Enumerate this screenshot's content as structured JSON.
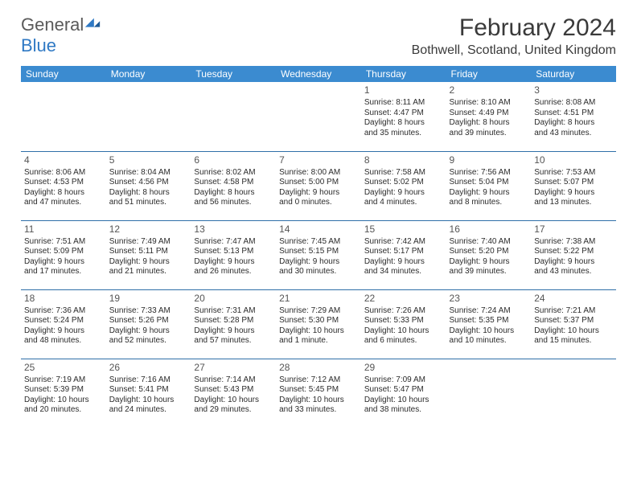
{
  "brand": {
    "name_a": "General",
    "name_b": "Blue",
    "accent": "#3b8bd0"
  },
  "title": "February 2024",
  "location": "Bothwell, Scotland, United Kingdom",
  "colors": {
    "header_bg": "#3b8bd0",
    "header_text": "#ffffff",
    "rule": "#2f6fa8",
    "body_text": "#2b2b2b",
    "page_bg": "#ffffff"
  },
  "day_headers": [
    "Sunday",
    "Monday",
    "Tuesday",
    "Wednesday",
    "Thursday",
    "Friday",
    "Saturday"
  ],
  "weeks": [
    [
      null,
      null,
      null,
      null,
      {
        "n": "1",
        "sr": "Sunrise: 8:11 AM",
        "ss": "Sunset: 4:47 PM",
        "d1": "Daylight: 8 hours",
        "d2": "and 35 minutes."
      },
      {
        "n": "2",
        "sr": "Sunrise: 8:10 AM",
        "ss": "Sunset: 4:49 PM",
        "d1": "Daylight: 8 hours",
        "d2": "and 39 minutes."
      },
      {
        "n": "3",
        "sr": "Sunrise: 8:08 AM",
        "ss": "Sunset: 4:51 PM",
        "d1": "Daylight: 8 hours",
        "d2": "and 43 minutes."
      }
    ],
    [
      {
        "n": "4",
        "sr": "Sunrise: 8:06 AM",
        "ss": "Sunset: 4:53 PM",
        "d1": "Daylight: 8 hours",
        "d2": "and 47 minutes."
      },
      {
        "n": "5",
        "sr": "Sunrise: 8:04 AM",
        "ss": "Sunset: 4:56 PM",
        "d1": "Daylight: 8 hours",
        "d2": "and 51 minutes."
      },
      {
        "n": "6",
        "sr": "Sunrise: 8:02 AM",
        "ss": "Sunset: 4:58 PM",
        "d1": "Daylight: 8 hours",
        "d2": "and 56 minutes."
      },
      {
        "n": "7",
        "sr": "Sunrise: 8:00 AM",
        "ss": "Sunset: 5:00 PM",
        "d1": "Daylight: 9 hours",
        "d2": "and 0 minutes."
      },
      {
        "n": "8",
        "sr": "Sunrise: 7:58 AM",
        "ss": "Sunset: 5:02 PM",
        "d1": "Daylight: 9 hours",
        "d2": "and 4 minutes."
      },
      {
        "n": "9",
        "sr": "Sunrise: 7:56 AM",
        "ss": "Sunset: 5:04 PM",
        "d1": "Daylight: 9 hours",
        "d2": "and 8 minutes."
      },
      {
        "n": "10",
        "sr": "Sunrise: 7:53 AM",
        "ss": "Sunset: 5:07 PM",
        "d1": "Daylight: 9 hours",
        "d2": "and 13 minutes."
      }
    ],
    [
      {
        "n": "11",
        "sr": "Sunrise: 7:51 AM",
        "ss": "Sunset: 5:09 PM",
        "d1": "Daylight: 9 hours",
        "d2": "and 17 minutes."
      },
      {
        "n": "12",
        "sr": "Sunrise: 7:49 AM",
        "ss": "Sunset: 5:11 PM",
        "d1": "Daylight: 9 hours",
        "d2": "and 21 minutes."
      },
      {
        "n": "13",
        "sr": "Sunrise: 7:47 AM",
        "ss": "Sunset: 5:13 PM",
        "d1": "Daylight: 9 hours",
        "d2": "and 26 minutes."
      },
      {
        "n": "14",
        "sr": "Sunrise: 7:45 AM",
        "ss": "Sunset: 5:15 PM",
        "d1": "Daylight: 9 hours",
        "d2": "and 30 minutes."
      },
      {
        "n": "15",
        "sr": "Sunrise: 7:42 AM",
        "ss": "Sunset: 5:17 PM",
        "d1": "Daylight: 9 hours",
        "d2": "and 34 minutes."
      },
      {
        "n": "16",
        "sr": "Sunrise: 7:40 AM",
        "ss": "Sunset: 5:20 PM",
        "d1": "Daylight: 9 hours",
        "d2": "and 39 minutes."
      },
      {
        "n": "17",
        "sr": "Sunrise: 7:38 AM",
        "ss": "Sunset: 5:22 PM",
        "d1": "Daylight: 9 hours",
        "d2": "and 43 minutes."
      }
    ],
    [
      {
        "n": "18",
        "sr": "Sunrise: 7:36 AM",
        "ss": "Sunset: 5:24 PM",
        "d1": "Daylight: 9 hours",
        "d2": "and 48 minutes."
      },
      {
        "n": "19",
        "sr": "Sunrise: 7:33 AM",
        "ss": "Sunset: 5:26 PM",
        "d1": "Daylight: 9 hours",
        "d2": "and 52 minutes."
      },
      {
        "n": "20",
        "sr": "Sunrise: 7:31 AM",
        "ss": "Sunset: 5:28 PM",
        "d1": "Daylight: 9 hours",
        "d2": "and 57 minutes."
      },
      {
        "n": "21",
        "sr": "Sunrise: 7:29 AM",
        "ss": "Sunset: 5:30 PM",
        "d1": "Daylight: 10 hours",
        "d2": "and 1 minute."
      },
      {
        "n": "22",
        "sr": "Sunrise: 7:26 AM",
        "ss": "Sunset: 5:33 PM",
        "d1": "Daylight: 10 hours",
        "d2": "and 6 minutes."
      },
      {
        "n": "23",
        "sr": "Sunrise: 7:24 AM",
        "ss": "Sunset: 5:35 PM",
        "d1": "Daylight: 10 hours",
        "d2": "and 10 minutes."
      },
      {
        "n": "24",
        "sr": "Sunrise: 7:21 AM",
        "ss": "Sunset: 5:37 PM",
        "d1": "Daylight: 10 hours",
        "d2": "and 15 minutes."
      }
    ],
    [
      {
        "n": "25",
        "sr": "Sunrise: 7:19 AM",
        "ss": "Sunset: 5:39 PM",
        "d1": "Daylight: 10 hours",
        "d2": "and 20 minutes."
      },
      {
        "n": "26",
        "sr": "Sunrise: 7:16 AM",
        "ss": "Sunset: 5:41 PM",
        "d1": "Daylight: 10 hours",
        "d2": "and 24 minutes."
      },
      {
        "n": "27",
        "sr": "Sunrise: 7:14 AM",
        "ss": "Sunset: 5:43 PM",
        "d1": "Daylight: 10 hours",
        "d2": "and 29 minutes."
      },
      {
        "n": "28",
        "sr": "Sunrise: 7:12 AM",
        "ss": "Sunset: 5:45 PM",
        "d1": "Daylight: 10 hours",
        "d2": "and 33 minutes."
      },
      {
        "n": "29",
        "sr": "Sunrise: 7:09 AM",
        "ss": "Sunset: 5:47 PM",
        "d1": "Daylight: 10 hours",
        "d2": "and 38 minutes."
      },
      null,
      null
    ]
  ]
}
